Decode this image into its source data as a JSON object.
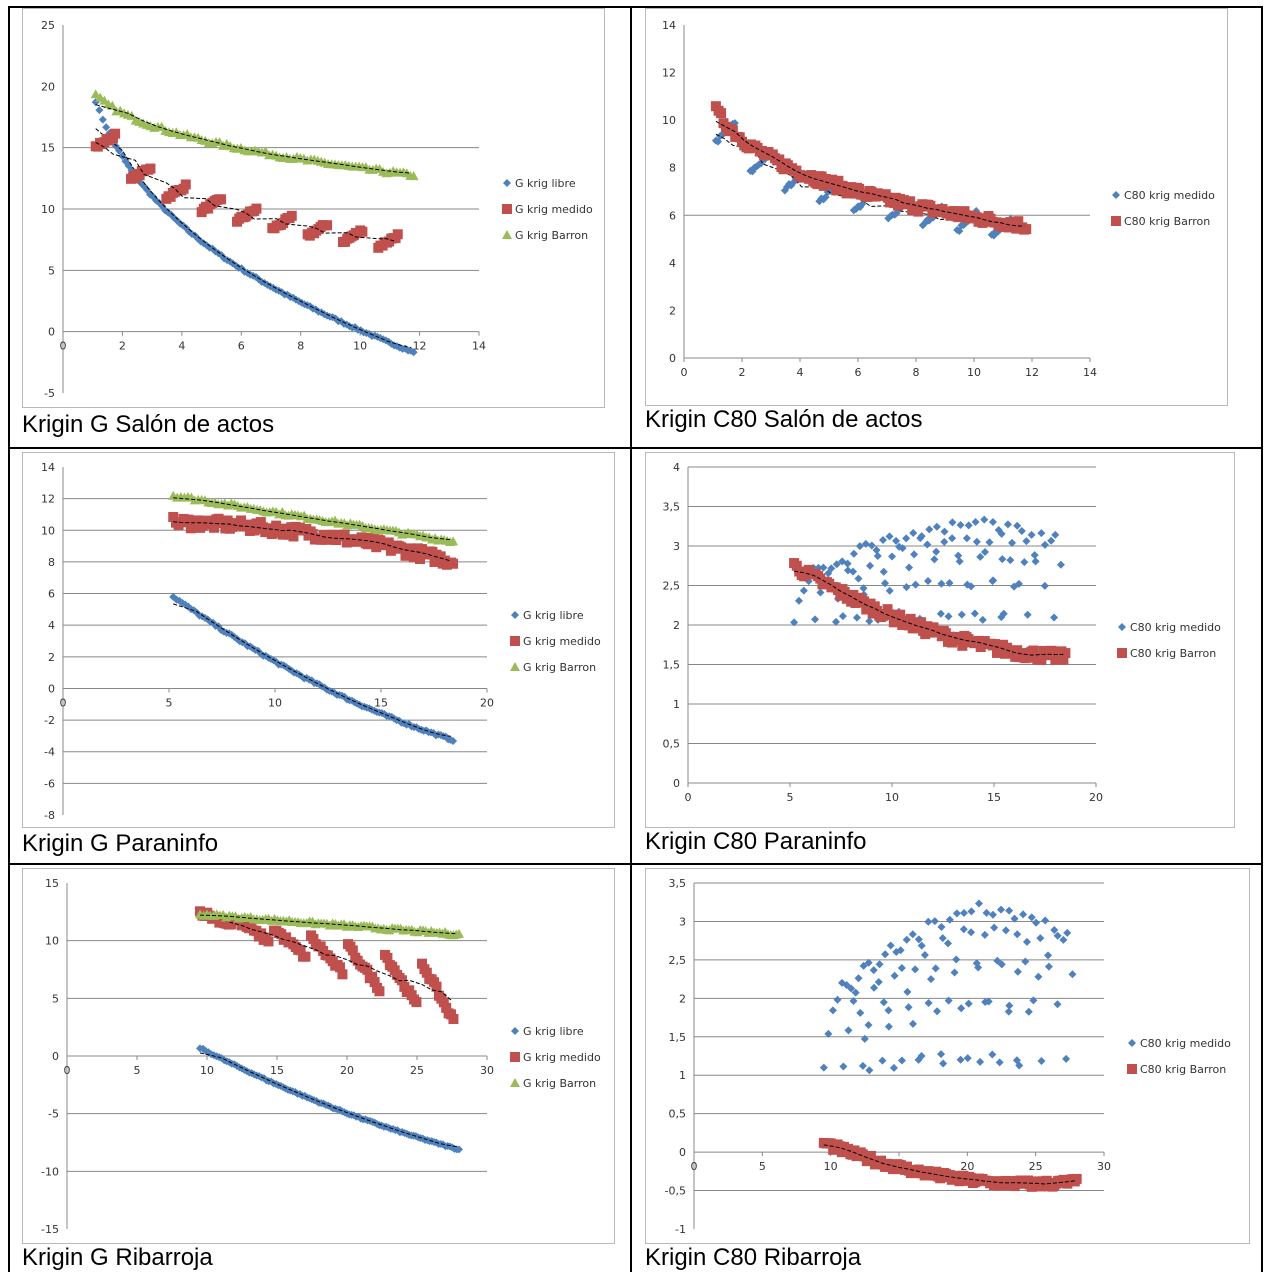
{
  "captions": {
    "c1": "Krigin G Salón de actos",
    "c2": "Krigin C80 Salón de actos",
    "c3": "Krigin G Paraninfo",
    "c4": "Krigin C80 Paraninfo",
    "c5": "Krigin G Ribarroja",
    "c6": "Krigin C80 Ribarroja"
  },
  "colors": {
    "blue": "#4f81bd",
    "red": "#c0504d",
    "green": "#9bbb59",
    "trend": "#000000",
    "grid": "#888888"
  },
  "chart_data": [
    {
      "id": "c1",
      "type": "scatter",
      "xlim": [
        0,
        14
      ],
      "ylim": [
        -5,
        25
      ],
      "xticks": [
        0,
        2,
        4,
        6,
        8,
        10,
        12,
        14
      ],
      "yticks": [
        -5,
        0,
        5,
        10,
        15,
        20,
        25
      ],
      "gridlines": [
        5,
        10,
        15
      ],
      "legend_position": "right",
      "series": [
        {
          "name": "G krig libre",
          "color": "blue",
          "marker": "diamond"
        },
        {
          "name": "G krig medido",
          "color": "red",
          "marker": "square"
        },
        {
          "name": "G krig Barron",
          "color": "green",
          "marker": "triangle"
        }
      ]
    },
    {
      "id": "c2",
      "type": "scatter",
      "xlim": [
        0,
        14
      ],
      "ylim": [
        0,
        14
      ],
      "xticks": [
        0,
        2,
        4,
        6,
        8,
        10,
        12,
        14
      ],
      "yticks": [
        0,
        2,
        4,
        6,
        8,
        10,
        12,
        14
      ],
      "gridlines": [
        6
      ],
      "legend_position": "right",
      "series": [
        {
          "name": "C80 krig medido",
          "color": "blue",
          "marker": "diamond"
        },
        {
          "name": "C80 krig Barron",
          "color": "red",
          "marker": "square"
        }
      ]
    },
    {
      "id": "c3",
      "type": "scatter",
      "xlim": [
        0,
        20
      ],
      "ylim": [
        -8,
        14
      ],
      "xticks": [
        0,
        5,
        10,
        15,
        20
      ],
      "yticks": [
        -8,
        -6,
        -4,
        -2,
        0,
        2,
        4,
        6,
        8,
        10,
        12,
        14
      ],
      "gridlines": [
        -6,
        -4,
        -2,
        2,
        4,
        6,
        8,
        10,
        12
      ],
      "legend_position": "right",
      "series": [
        {
          "name": "G krig libre",
          "color": "blue",
          "marker": "diamond"
        },
        {
          "name": "G krig medido",
          "color": "red",
          "marker": "square"
        },
        {
          "name": "G krig Barron",
          "color": "green",
          "marker": "triangle"
        }
      ]
    },
    {
      "id": "c4",
      "type": "scatter",
      "xlim": [
        0,
        20
      ],
      "ylim": [
        0,
        4
      ],
      "xticks": [
        0,
        5,
        10,
        15,
        20
      ],
      "yticks": [
        0,
        0.5,
        1,
        1.5,
        2,
        2.5,
        3,
        3.5,
        4
      ],
      "yticklabels": [
        "0",
        "0,5",
        "1",
        "1,5",
        "2",
        "2,5",
        "3",
        "3,5",
        "4"
      ],
      "gridlines": [
        0.5,
        1,
        1.5,
        2,
        2.5,
        3,
        3.5,
        4
      ],
      "legend_position": "right",
      "series": [
        {
          "name": "C80 krig medido",
          "color": "blue",
          "marker": "diamond"
        },
        {
          "name": "C80 krig Barron",
          "color": "red",
          "marker": "square"
        }
      ]
    },
    {
      "id": "c5",
      "type": "scatter",
      "xlim": [
        0,
        30
      ],
      "ylim": [
        -15,
        15
      ],
      "xticks": [
        0,
        5,
        10,
        15,
        20,
        25,
        30
      ],
      "yticks": [
        -15,
        -10,
        -5,
        0,
        5,
        10,
        15
      ],
      "gridlines": [
        -10,
        -5,
        5,
        10
      ],
      "legend_position": "right",
      "series": [
        {
          "name": "G krig libre",
          "color": "blue",
          "marker": "diamond"
        },
        {
          "name": "G krig medido",
          "color": "red",
          "marker": "square"
        },
        {
          "name": "G krig Barron",
          "color": "green",
          "marker": "triangle"
        }
      ]
    },
    {
      "id": "c6",
      "type": "scatter",
      "xlim": [
        0,
        30
      ],
      "ylim": [
        -1,
        3.5
      ],
      "xticks": [
        0,
        5,
        10,
        15,
        20,
        25,
        30
      ],
      "yticks": [
        -1,
        -0.5,
        0,
        0.5,
        1,
        1.5,
        2,
        2.5,
        3,
        3.5
      ],
      "yticklabels": [
        "-1",
        "-0,5",
        "0",
        "0,5",
        "1",
        "1,5",
        "2",
        "2,5",
        "3",
        "3,5"
      ],
      "gridlines": [
        -0.5,
        0.5,
        1,
        1.5,
        2,
        2.5,
        3,
        3.5
      ],
      "legend_position": "right",
      "series": [
        {
          "name": "C80 krig medido",
          "color": "blue",
          "marker": "diamond"
        },
        {
          "name": "C80 krig Barron",
          "color": "red",
          "marker": "square"
        }
      ]
    }
  ]
}
